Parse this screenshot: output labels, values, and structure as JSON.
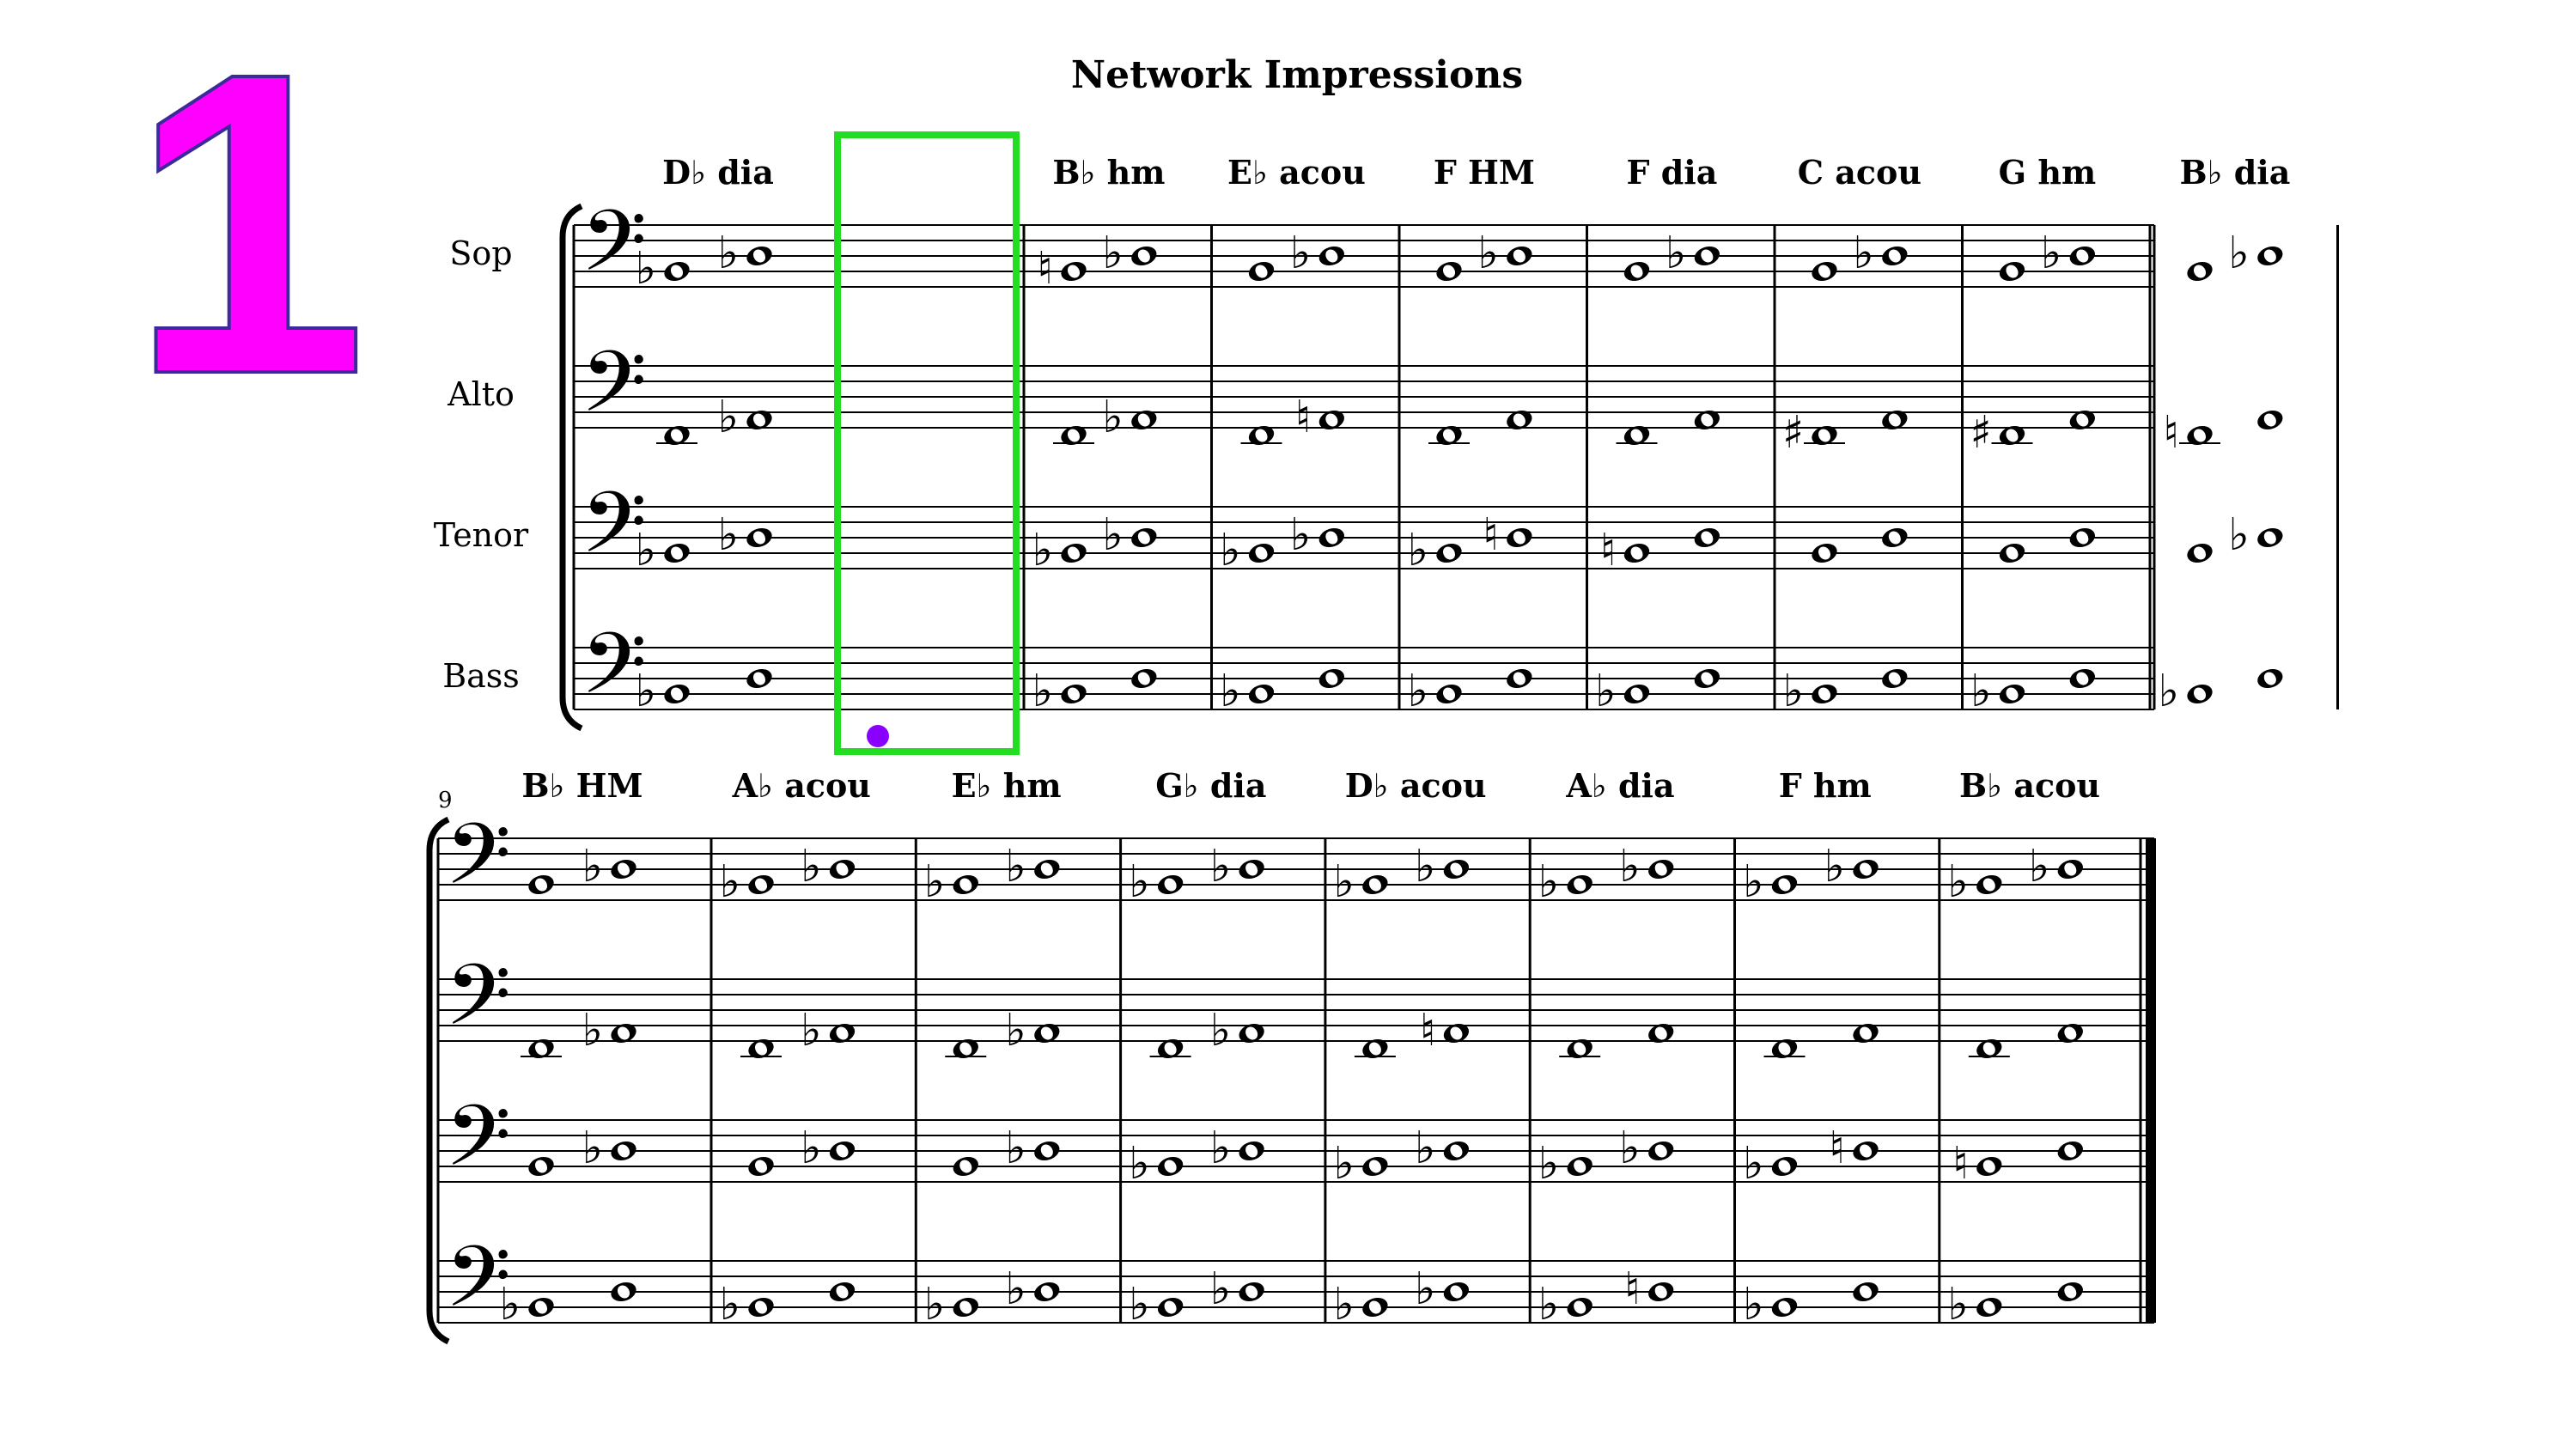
{
  "slide_number": "1",
  "score": {
    "title": "Network Impressions",
    "parts": [
      "Sop",
      "Alto",
      "Tenor",
      "Bass"
    ],
    "second_system_measure_number": "9",
    "measures": [
      {
        "chord": "D♭ dia",
        "notes": [
          [
            [
              "♭",
              2
            ],
            [
              "♭",
              4
            ]
          ],
          [
            [
              "",
              -1
            ],
            [
              "♭",
              1
            ]
          ],
          [
            [
              "♭",
              2
            ],
            [
              "♭",
              4
            ]
          ],
          [
            [
              "♭",
              2
            ],
            [
              "",
              4
            ]
          ]
        ]
      },
      {
        "chord": "B♭ hm",
        "notes": [
          [
            [
              "♮",
              2
            ],
            [
              "♭",
              4
            ]
          ],
          [
            [
              "",
              -1
            ],
            [
              "♭",
              1
            ]
          ],
          [
            [
              "♭",
              2
            ],
            [
              "♭",
              4
            ]
          ],
          [
            [
              "♭",
              2
            ],
            [
              "",
              4
            ]
          ]
        ]
      },
      {
        "chord": "E♭ acou",
        "notes": [
          [
            [
              "",
              2
            ],
            [
              "♭",
              4
            ]
          ],
          [
            [
              "",
              -1
            ],
            [
              "♮",
              1
            ]
          ],
          [
            [
              "♭",
              2
            ],
            [
              "♭",
              4
            ]
          ],
          [
            [
              "♭",
              2
            ],
            [
              "",
              4
            ]
          ]
        ]
      },
      {
        "chord": "F HM",
        "notes": [
          [
            [
              "",
              2
            ],
            [
              "♭",
              4
            ]
          ],
          [
            [
              "",
              -1
            ],
            [
              "",
              1
            ]
          ],
          [
            [
              "♭",
              2
            ],
            [
              "♮",
              4
            ]
          ],
          [
            [
              "♭",
              2
            ],
            [
              "",
              4
            ]
          ]
        ]
      },
      {
        "chord": "F dia",
        "notes": [
          [
            [
              "",
              2
            ],
            [
              "♭",
              4
            ]
          ],
          [
            [
              "",
              -1
            ],
            [
              "",
              1
            ]
          ],
          [
            [
              "♮",
              2
            ],
            [
              "",
              4
            ]
          ],
          [
            [
              "♭",
              2
            ],
            [
              "",
              4
            ]
          ]
        ]
      },
      {
        "chord": "C acou",
        "notes": [
          [
            [
              "",
              2
            ],
            [
              "♭",
              4
            ]
          ],
          [
            [
              "♯",
              -1
            ],
            [
              "",
              1
            ]
          ],
          [
            [
              "",
              2
            ],
            [
              "",
              4
            ]
          ],
          [
            [
              "♭",
              2
            ],
            [
              "",
              4
            ]
          ]
        ]
      },
      {
        "chord": "G hm",
        "notes": [
          [
            [
              "",
              2
            ],
            [
              "♭",
              4
            ]
          ],
          [
            [
              "♯",
              -1
            ],
            [
              "",
              1
            ]
          ],
          [
            [
              "",
              2
            ],
            [
              "",
              4
            ]
          ],
          [
            [
              "♭",
              2
            ],
            [
              "",
              4
            ]
          ]
        ]
      },
      {
        "chord": "B♭ dia",
        "notes": [
          [
            [
              "",
              2
            ],
            [
              "♭",
              4
            ]
          ],
          [
            [
              "♮",
              -1
            ],
            [
              "",
              1
            ]
          ],
          [
            [
              "",
              2
            ],
            [
              "♭",
              4
            ]
          ],
          [
            [
              "♭",
              2
            ],
            [
              "",
              4
            ]
          ]
        ]
      },
      {
        "chord": "B♭ HM",
        "notes": [
          [
            [
              "",
              2
            ],
            [
              "♭",
              4
            ]
          ],
          [
            [
              "",
              -1
            ],
            [
              "♭",
              1
            ]
          ],
          [
            [
              "",
              2
            ],
            [
              "♭",
              4
            ]
          ],
          [
            [
              "♭",
              2
            ],
            [
              "",
              4
            ]
          ]
        ]
      },
      {
        "chord": "A♭ acou",
        "notes": [
          [
            [
              "♭",
              2
            ],
            [
              "♭",
              4
            ]
          ],
          [
            [
              "",
              -1
            ],
            [
              "♭",
              1
            ]
          ],
          [
            [
              "",
              2
            ],
            [
              "♭",
              4
            ]
          ],
          [
            [
              "♭",
              2
            ],
            [
              "",
              4
            ]
          ]
        ]
      },
      {
        "chord": "E♭ hm",
        "notes": [
          [
            [
              "♭",
              2
            ],
            [
              "♭",
              4
            ]
          ],
          [
            [
              "",
              -1
            ],
            [
              "♭",
              1
            ]
          ],
          [
            [
              "",
              2
            ],
            [
              "♭",
              4
            ]
          ],
          [
            [
              "♭",
              2
            ],
            [
              "♭",
              4
            ]
          ]
        ]
      },
      {
        "chord": "G♭ dia",
        "notes": [
          [
            [
              "♭",
              2
            ],
            [
              "♭",
              4
            ]
          ],
          [
            [
              "",
              -1
            ],
            [
              "♭",
              1
            ]
          ],
          [
            [
              "♭",
              2
            ],
            [
              "♭",
              4
            ]
          ],
          [
            [
              "♭",
              2
            ],
            [
              "♭",
              4
            ]
          ]
        ]
      },
      {
        "chord": "D♭ acou",
        "notes": [
          [
            [
              "♭",
              2
            ],
            [
              "♭",
              4
            ]
          ],
          [
            [
              "",
              -1
            ],
            [
              "♮",
              1
            ]
          ],
          [
            [
              "♭",
              2
            ],
            [
              "♭",
              4
            ]
          ],
          [
            [
              "♭",
              2
            ],
            [
              "♭",
              4
            ]
          ]
        ]
      },
      {
        "chord": "A♭ dia",
        "notes": [
          [
            [
              "♭",
              2
            ],
            [
              "♭",
              4
            ]
          ],
          [
            [
              "",
              -1
            ],
            [
              "",
              1
            ]
          ],
          [
            [
              "♭",
              2
            ],
            [
              "♭",
              4
            ]
          ],
          [
            [
              "♭",
              2
            ],
            [
              "♮",
              4
            ]
          ]
        ]
      },
      {
        "chord": "F hm",
        "notes": [
          [
            [
              "♭",
              2
            ],
            [
              "♭",
              4
            ]
          ],
          [
            [
              "",
              -1
            ],
            [
              "",
              1
            ]
          ],
          [
            [
              "♭",
              2
            ],
            [
              "♮",
              4
            ]
          ],
          [
            [
              "♭",
              2
            ],
            [
              "",
              4
            ]
          ]
        ]
      },
      {
        "chord": "B♭ acou",
        "notes": [
          [
            [
              "♭",
              2
            ],
            [
              "♭",
              4
            ]
          ],
          [
            [
              "",
              -1
            ],
            [
              "",
              1
            ]
          ],
          [
            [
              "♮",
              2
            ],
            [
              "",
              4
            ]
          ],
          [
            [
              "♭",
              2
            ],
            [
              "",
              4
            ]
          ]
        ]
      }
    ],
    "highlight_measure_index": 1
  },
  "colors": {
    "slide_number_fill": "#ff00ff",
    "highlight_box": "#22dd22",
    "marker_dot": "#8a00ff"
  }
}
